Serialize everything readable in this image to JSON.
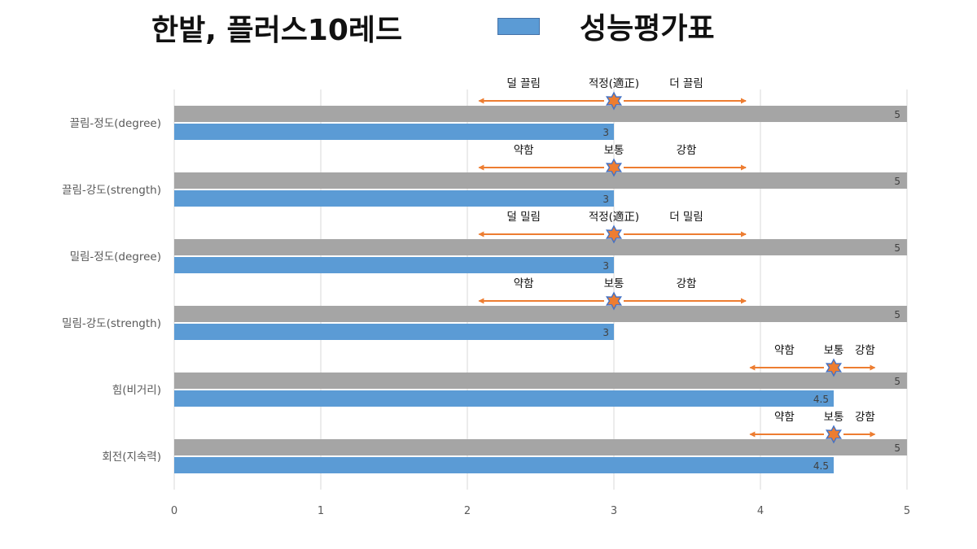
{
  "header": {
    "title": "한밭, 플러스10레드",
    "subtitle": "성능평가표"
  },
  "colors": {
    "max_bar": "#a5a5a5",
    "score_bar": "#5b9bd5",
    "arrow": "#ed7d31",
    "star_fill": "#ed7d31",
    "star_stroke": "#4472c4",
    "grid": "#d9d9d9",
    "axis_text": "#595959"
  },
  "chart_data": {
    "type": "bar",
    "orientation": "horizontal",
    "categories": [
      "끌림-정도(degree)",
      "끌림-강도(strength)",
      "밀림-정도(degree)",
      "밀림-강도(strength)",
      "힘(비거리)",
      "회전(지속력)"
    ],
    "series": [
      {
        "name": "",
        "color": "#a5a5a5",
        "values": [
          5,
          5,
          5,
          5,
          5,
          5
        ],
        "data_labels": [
          "5",
          "5",
          "5",
          "5",
          "5",
          "5"
        ]
      },
      {
        "name": "성능평가표",
        "color": "#5b9bd5",
        "values": [
          3,
          3,
          3,
          3,
          4.5,
          4.5
        ],
        "data_labels": [
          "3",
          "3",
          "3",
          "3",
          "4.5",
          "4.5"
        ]
      }
    ],
    "xlim": [
      0,
      5
    ],
    "x_ticks": [
      "0",
      "1",
      "2",
      "3",
      "4",
      "5"
    ],
    "grid": true,
    "legend": "top",
    "annotations": [
      {
        "category": "끌림-정도(degree)",
        "marker": 3,
        "range": [
          2.08,
          3.9
        ],
        "left": "덜 끌림",
        "center": "적정(適正)",
        "right": "더 끌림"
      },
      {
        "category": "끌림-강도(strength)",
        "marker": 3,
        "range": [
          2.08,
          3.9
        ],
        "left": "약함",
        "center": "보통",
        "right": "강함"
      },
      {
        "category": "밀림-정도(degree)",
        "marker": 3,
        "range": [
          2.08,
          3.9
        ],
        "left": "덜 밀림",
        "center": "적정(適正)",
        "right": "더 밀림"
      },
      {
        "category": "밀림-강도(strength)",
        "marker": 3,
        "range": [
          2.08,
          3.9
        ],
        "left": "약함",
        "center": "보통",
        "right": "강함"
      },
      {
        "category": "힘(비거리)",
        "marker": 4.5,
        "range": [
          3.93,
          4.78
        ],
        "left": "약함",
        "center": "보통",
        "right": "강함"
      },
      {
        "category": "회전(지속력)",
        "marker": 4.5,
        "range": [
          3.93,
          4.78
        ],
        "left": "약함",
        "center": "보통",
        "right": "강함"
      }
    ]
  }
}
